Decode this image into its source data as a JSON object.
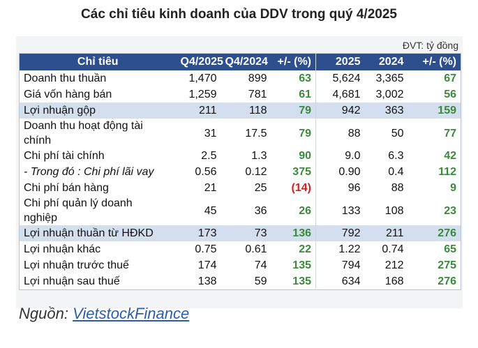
{
  "title": "Các chỉ tiêu kinh doanh của DDV trong quý 4/2025",
  "unit": "ĐVT: tỷ đồng",
  "table": {
    "header": [
      "Chỉ tiêu",
      "Q4/2025",
      "Q4/2024",
      "+/- (%)",
      "2025",
      "2024",
      "+/- (%)"
    ],
    "rows": [
      [
        "Doanh thu thuần",
        "1,470",
        "899",
        "63",
        "5,624",
        "3,365",
        "67"
      ],
      [
        "Giá vốn hàng bán",
        "1,259",
        "781",
        "61",
        "4,681",
        "3,002",
        "56"
      ],
      [
        "Lợi nhuận gộp",
        "211",
        "118",
        "79",
        "942",
        "363",
        "159"
      ],
      [
        "Doanh thu hoạt động tài chính",
        "31",
        "17.5",
        "79",
        "88",
        "50",
        "77"
      ],
      [
        "Chi phí tài chính",
        "2.5",
        "1.3",
        "90",
        "9.0",
        "6.3",
        "42"
      ],
      [
        "- Trong đó : Chi phí lãi vay",
        "0.56",
        "0.12",
        "375",
        "0.90",
        "0.4",
        "112"
      ],
      [
        "Chi phí bán hàng",
        "21",
        "25",
        "(14)",
        "96",
        "88",
        "9"
      ],
      [
        "Chi phí quản lý doanh nghiệp",
        "45",
        "36",
        "26",
        "133",
        "108",
        "23"
      ],
      [
        "Lợi nhuận thuần từ HĐKD",
        "173",
        "73",
        "136",
        "792",
        "211",
        "276"
      ],
      [
        "Lợi nhuận khác",
        "0.75",
        "0.61",
        "22",
        "1.22",
        "0.74",
        "65"
      ],
      [
        "Lợi nhuận trước thuế",
        "174",
        "74",
        "135",
        "794",
        "212",
        "275"
      ],
      [
        "Lợi nhuận sau thuế",
        "138",
        "59",
        "135",
        "634",
        "168",
        "276"
      ]
    ]
  },
  "source": {
    "label": "Nguồn:",
    "link": "VietstockFinance"
  }
}
